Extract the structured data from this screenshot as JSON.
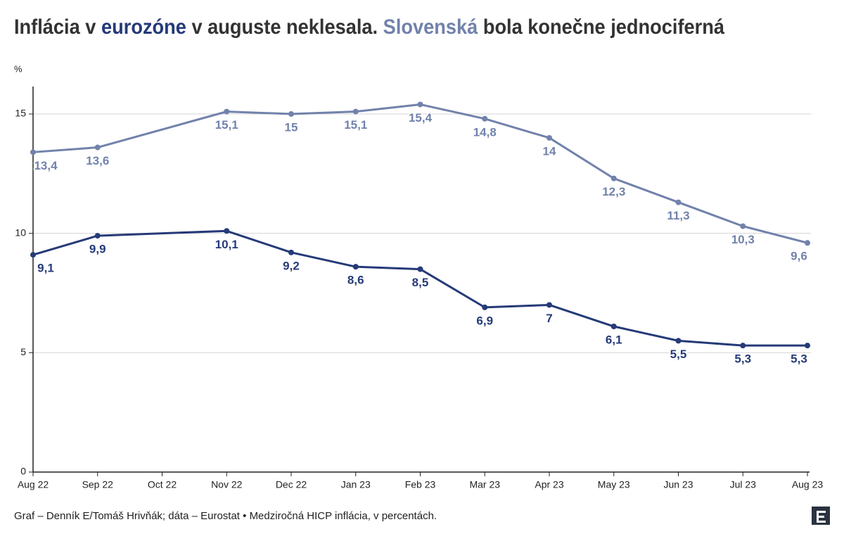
{
  "chart_data": {
    "type": "line",
    "title": [
      "Inflácia v ",
      " v auguste neklesala. ",
      " bola konečne jednociferná"
    ],
    "y_unit": "%",
    "footer": "Graf – Denník E/Tomáš Hrivňák; dáta – Eurostat • Medziročná HICP inflácia, v percentách.",
    "categories": [
      "Aug 22",
      "Sep 22",
      "Oct 22",
      "Nov 22",
      "Dec 22",
      "Jan 23",
      "Feb 23",
      "Mar 23",
      "Apr 23",
      "May 23",
      "Jun 23",
      "Jul 23",
      "Aug 23"
    ],
    "series": [
      {
        "name": "eurozóne",
        "color": "#253a78",
        "values": [
          9.1,
          9.9,
          null,
          10.1,
          9.2,
          8.6,
          8.5,
          6.9,
          7,
          6.1,
          5.5,
          5.3,
          5.3
        ],
        "value_labels": [
          "9,1",
          "9,9",
          null,
          "10,1",
          "9,2",
          "8,6",
          "8,5",
          "6,9",
          "7",
          "6,1",
          "5,5",
          "5,3",
          "5,3"
        ]
      },
      {
        "name": "Slovenská",
        "color": "#7182ab",
        "values": [
          13.4,
          13.6,
          null,
          15.1,
          15,
          15.1,
          15.4,
          14.8,
          14,
          12.3,
          11.3,
          10.3,
          9.6
        ],
        "value_labels": [
          "13,4",
          "13,6",
          null,
          "15,1",
          "15",
          "15,1",
          "15,4",
          "14,8",
          "14",
          "12,3",
          "11,3",
          "10,3",
          "9,6"
        ]
      }
    ],
    "ylim": [
      0,
      16.15
    ],
    "yticks": [
      0,
      5,
      10,
      15
    ],
    "grid": true,
    "span_gaps": true
  }
}
